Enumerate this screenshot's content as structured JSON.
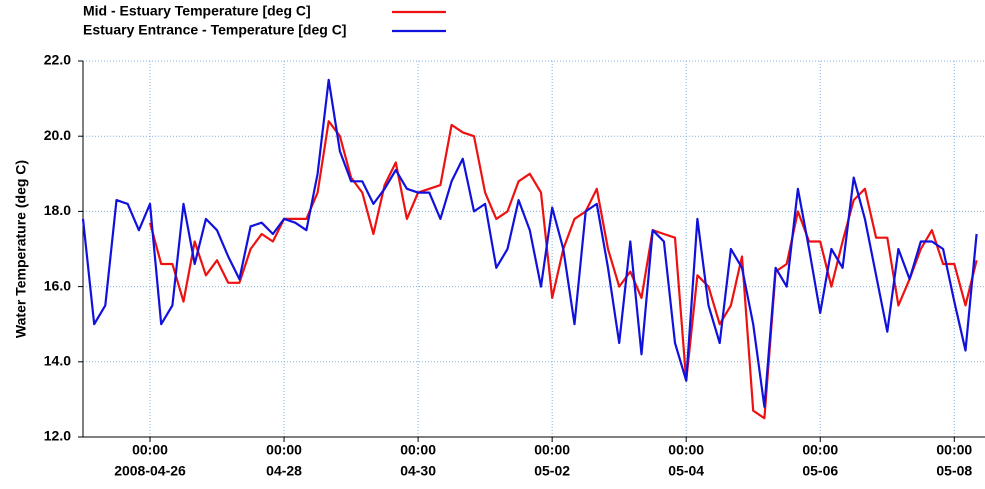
{
  "chart_data": {
    "type": "line",
    "ylabel": "Water Temperature (deg C)",
    "ylim": [
      12,
      22
    ],
    "yticks": [
      {
        "value": 12,
        "label": "12.0"
      },
      {
        "value": 14,
        "label": "14.0"
      },
      {
        "value": 16,
        "label": "16.0"
      },
      {
        "value": 18,
        "label": "18.0"
      },
      {
        "value": 20,
        "label": "20.0"
      },
      {
        "value": 22,
        "label": "22.0"
      }
    ],
    "xlim": [
      "2008-04-25 00:00",
      "2008-05-08 11:00"
    ],
    "xticks": [
      {
        "value": "2008-04-26 00:00",
        "label": [
          "00:00",
          "2008-04-26"
        ]
      },
      {
        "value": "2008-04-28 00:00",
        "label": [
          "00:00",
          "04-28"
        ]
      },
      {
        "value": "2008-04-30 00:00",
        "label": [
          "00:00",
          "04-30"
        ]
      },
      {
        "value": "2008-05-02 00:00",
        "label": [
          "00:00",
          "05-02"
        ]
      },
      {
        "value": "2008-05-04 00:00",
        "label": [
          "00:00",
          "05-04"
        ]
      },
      {
        "value": "2008-05-06 00:00",
        "label": [
          "00:00",
          "05-06"
        ]
      },
      {
        "value": "2008-05-08 00:00",
        "label": [
          "00:00",
          "05-08"
        ]
      }
    ],
    "grid": true,
    "legend": "top-left",
    "x": [
      "2008-04-25 00:00",
      "2008-04-25 04:00",
      "2008-04-25 08:00",
      "2008-04-25 12:00",
      "2008-04-25 16:00",
      "2008-04-25 20:00",
      "2008-04-26 00:00",
      "2008-04-26 04:00",
      "2008-04-26 08:00",
      "2008-04-26 12:00",
      "2008-04-26 16:00",
      "2008-04-26 20:00",
      "2008-04-27 00:00",
      "2008-04-27 04:00",
      "2008-04-27 08:00",
      "2008-04-27 12:00",
      "2008-04-27 16:00",
      "2008-04-27 20:00",
      "2008-04-28 00:00",
      "2008-04-28 04:00",
      "2008-04-28 08:00",
      "2008-04-28 12:00",
      "2008-04-28 16:00",
      "2008-04-28 20:00",
      "2008-04-29 00:00",
      "2008-04-29 04:00",
      "2008-04-29 08:00",
      "2008-04-29 12:00",
      "2008-04-29 16:00",
      "2008-04-29 20:00",
      "2008-04-30 00:00",
      "2008-04-30 04:00",
      "2008-04-30 08:00",
      "2008-04-30 12:00",
      "2008-04-30 16:00",
      "2008-04-30 20:00",
      "2008-05-01 00:00",
      "2008-05-01 04:00",
      "2008-05-01 08:00",
      "2008-05-01 12:00",
      "2008-05-01 16:00",
      "2008-05-01 20:00",
      "2008-05-02 00:00",
      "2008-05-02 04:00",
      "2008-05-02 08:00",
      "2008-05-02 12:00",
      "2008-05-02 16:00",
      "2008-05-02 20:00",
      "2008-05-03 00:00",
      "2008-05-03 04:00",
      "2008-05-03 08:00",
      "2008-05-03 12:00",
      "2008-05-03 16:00",
      "2008-05-03 20:00",
      "2008-05-04 00:00",
      "2008-05-04 04:00",
      "2008-05-04 08:00",
      "2008-05-04 12:00",
      "2008-05-04 16:00",
      "2008-05-04 20:00",
      "2008-05-05 00:00",
      "2008-05-05 04:00",
      "2008-05-05 08:00",
      "2008-05-05 12:00",
      "2008-05-05 16:00",
      "2008-05-05 20:00",
      "2008-05-06 00:00",
      "2008-05-06 04:00",
      "2008-05-06 08:00",
      "2008-05-06 12:00",
      "2008-05-06 16:00",
      "2008-05-06 20:00",
      "2008-05-07 00:00",
      "2008-05-07 04:00",
      "2008-05-07 08:00",
      "2008-05-07 12:00",
      "2008-05-07 16:00",
      "2008-05-07 20:00",
      "2008-05-08 00:00",
      "2008-05-08 04:00",
      "2008-05-08 08:00"
    ],
    "series": [
      {
        "name": "Mid - Estuary Temperature [deg C]",
        "color": "#ee1111",
        "values": [
          null,
          null,
          null,
          null,
          null,
          null,
          17.7,
          16.6,
          16.6,
          15.6,
          17.2,
          16.3,
          16.7,
          16.1,
          16.1,
          17.0,
          17.4,
          17.2,
          17.8,
          17.8,
          17.8,
          18.5,
          20.4,
          20.0,
          18.9,
          18.5,
          17.4,
          18.7,
          19.3,
          17.8,
          18.5,
          18.6,
          18.7,
          20.3,
          20.1,
          20.0,
          18.5,
          17.8,
          18.0,
          18.8,
          19.0,
          18.5,
          15.7,
          17.0,
          17.8,
          18.0,
          18.6,
          17.0,
          16.0,
          16.4,
          15.7,
          17.5,
          17.4,
          17.3,
          13.5,
          16.3,
          16.0,
          15.0,
          15.5,
          16.8,
          12.7,
          12.5,
          16.4,
          16.6,
          18.0,
          17.2,
          17.2,
          16.0,
          17.2,
          18.3,
          18.6,
          17.3,
          17.3,
          15.5,
          16.2,
          17.0,
          17.5,
          16.6,
          16.6,
          15.5,
          16.7
        ]
      },
      {
        "name": "Estuary Entrance - Temperature [deg C]",
        "color": "#1111dd",
        "values": [
          17.8,
          15.0,
          15.5,
          18.3,
          18.2,
          17.5,
          18.2,
          15.0,
          15.5,
          18.2,
          16.6,
          17.8,
          17.5,
          16.8,
          16.2,
          17.6,
          17.7,
          17.4,
          17.8,
          17.7,
          17.5,
          19.0,
          21.5,
          19.6,
          18.8,
          18.8,
          18.2,
          18.6,
          19.1,
          18.6,
          18.5,
          18.5,
          17.8,
          18.8,
          19.4,
          18.0,
          18.2,
          16.5,
          17.0,
          18.3,
          17.5,
          16.0,
          18.1,
          17.0,
          15.0,
          18.0,
          18.2,
          16.5,
          14.5,
          17.2,
          14.2,
          17.5,
          17.2,
          14.5,
          13.5,
          17.8,
          15.5,
          14.5,
          17.0,
          16.5,
          15.0,
          12.8,
          16.5,
          16.0,
          18.6,
          17.0,
          15.3,
          17.0,
          16.5,
          18.9,
          17.8,
          16.3,
          14.8,
          17.0,
          16.2,
          17.2,
          17.2,
          17.0,
          15.6,
          14.3,
          17.4
        ]
      }
    ]
  }
}
